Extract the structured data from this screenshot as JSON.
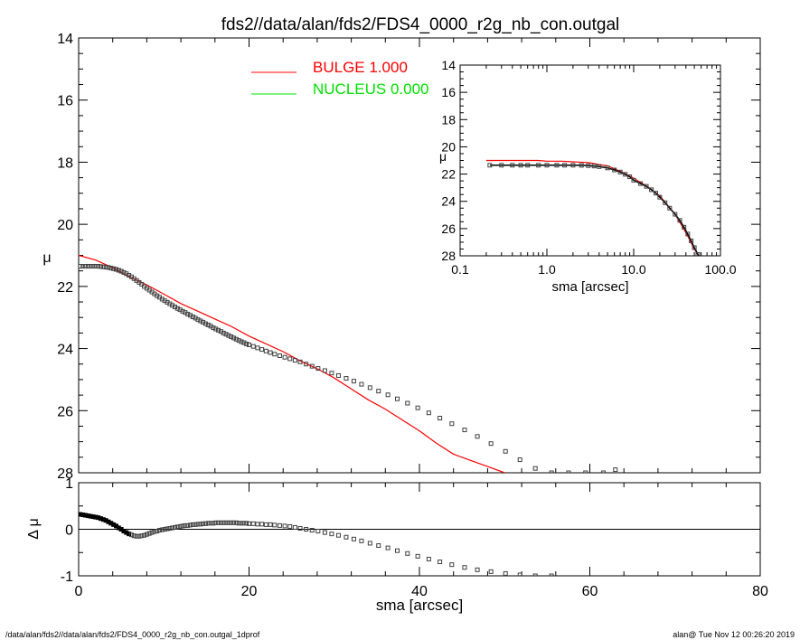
{
  "title": "fds2//data/alan/fds2/FDS4_0000_r2g_nb_con.outgal",
  "footer_left": "/data/alan/fds2//data/alan/fds2/FDS4_0000_r2g_nb_con.outgal_1dprof",
  "footer_right": "alan@  Tue Nov 12 00:26:20 2019",
  "colors": {
    "bulge": "#ff0000",
    "nucleus": "#00e000",
    "data": "#404040",
    "axes": "#000000"
  },
  "chart_data": [
    {
      "type": "scatter",
      "panel": "main",
      "xlabel": "",
      "ylabel": "μ",
      "xlim": [
        0,
        80
      ],
      "ylim": [
        28,
        14
      ],
      "y_ticks": [
        "14",
        "16",
        "18",
        "20",
        "22",
        "24",
        "26",
        "28"
      ],
      "legend": [
        {
          "label": "BULGE  1.000",
          "color": "#ff0000"
        },
        {
          "label": "NUCLEUS  0.000",
          "color": "#00e000"
        }
      ],
      "legend_position": "top-center",
      "series": [
        {
          "name": "BULGE  1.000",
          "kind": "line",
          "x": [
            0,
            2,
            4,
            6,
            8,
            10,
            12,
            14,
            16,
            18,
            20,
            22,
            24,
            26,
            28,
            30,
            32,
            34,
            36,
            38,
            40,
            42,
            44,
            46,
            48,
            50
          ],
          "y": [
            21.0,
            21.15,
            21.4,
            21.7,
            21.95,
            22.25,
            22.55,
            22.8,
            23.05,
            23.3,
            23.6,
            23.85,
            24.1,
            24.4,
            24.65,
            24.95,
            25.3,
            25.65,
            25.95,
            26.3,
            26.65,
            27.05,
            27.4,
            27.6,
            27.8,
            28.0
          ]
        },
        {
          "name": "",
          "kind": "markers",
          "x": [
            0.2,
            0.5,
            0.8,
            1.1,
            1.4,
            1.7,
            2.0,
            2.3,
            2.6,
            2.9,
            3.2,
            3.5,
            3.8,
            4.1,
            4.4,
            4.7,
            5.0,
            5.3,
            5.6,
            5.9,
            6.2,
            6.5,
            6.8,
            7.1,
            7.4,
            7.7,
            8.0,
            8.3,
            8.6,
            8.9,
            9.2,
            9.5,
            9.8,
            10.1,
            10.4,
            10.7,
            11.0,
            11.3,
            11.6,
            11.9,
            12.2,
            12.5,
            12.8,
            13.1,
            13.4,
            13.7,
            14.0,
            14.3,
            14.6,
            14.9,
            15.2,
            15.5,
            15.8,
            16.1,
            16.4,
            16.7,
            17.0,
            17.3,
            17.6,
            17.9,
            18.2,
            18.5,
            18.8,
            19.1,
            19.4,
            19.7,
            20.0,
            20.5,
            21.0,
            21.5,
            22.0,
            22.5,
            23.0,
            23.6,
            24.2,
            24.8,
            25.4,
            26.0,
            26.7,
            27.4,
            28.1,
            28.9,
            29.7,
            30.5,
            31.4,
            32.3,
            33.2,
            34.2,
            35.2,
            36.3,
            37.4,
            38.6,
            39.8,
            41.1,
            42.4,
            43.8,
            45.3,
            46.8,
            48.4,
            50.1,
            51.8,
            53.6,
            55.5,
            57.5,
            59.5,
            61.6,
            63.0
          ],
          "y": [
            21.35,
            21.35,
            21.35,
            21.35,
            21.35,
            21.35,
            21.35,
            21.35,
            21.36,
            21.37,
            21.38,
            21.39,
            21.41,
            21.43,
            21.45,
            21.48,
            21.51,
            21.55,
            21.59,
            21.64,
            21.69,
            21.75,
            21.81,
            21.87,
            21.93,
            22.0,
            22.06,
            22.12,
            22.18,
            22.24,
            22.3,
            22.35,
            22.41,
            22.46,
            22.51,
            22.56,
            22.61,
            22.66,
            22.71,
            22.75,
            22.8,
            22.84,
            22.89,
            22.93,
            22.98,
            23.02,
            23.07,
            23.11,
            23.15,
            23.2,
            23.24,
            23.28,
            23.33,
            23.37,
            23.41,
            23.45,
            23.5,
            23.54,
            23.58,
            23.62,
            23.66,
            23.7,
            23.74,
            23.78,
            23.81,
            23.85,
            23.88,
            23.93,
            23.98,
            24.03,
            24.08,
            24.13,
            24.18,
            24.23,
            24.28,
            24.33,
            24.38,
            24.43,
            24.5,
            24.57,
            24.64,
            24.71,
            24.79,
            24.87,
            24.96,
            25.05,
            25.15,
            25.26,
            25.37,
            25.49,
            25.62,
            25.76,
            25.91,
            26.07,
            26.24,
            26.42,
            26.62,
            26.83,
            27.06,
            27.31,
            27.58,
            27.86,
            28.0,
            28.0,
            28.0,
            28.0,
            27.9
          ]
        }
      ]
    },
    {
      "type": "scatter",
      "panel": "residual",
      "xlabel": "sma [arcsec]",
      "ylabel": "Δ μ",
      "xlim": [
        0,
        80
      ],
      "ylim": [
        -1,
        1
      ],
      "x_ticks": [
        "0",
        "20",
        "40",
        "60",
        "80"
      ],
      "y_ticks": [
        "1",
        "0",
        "-1"
      ],
      "series": [
        {
          "name": "",
          "kind": "markers",
          "x": [
            0.2,
            0.5,
            0.8,
            1.1,
            1.4,
            1.7,
            2.0,
            2.3,
            2.6,
            2.9,
            3.2,
            3.5,
            3.8,
            4.1,
            4.4,
            4.7,
            5.0,
            5.3,
            5.6,
            5.9,
            6.2,
            6.5,
            6.8,
            7.1,
            7.4,
            7.7,
            8.0,
            8.3,
            8.6,
            8.9,
            9.2,
            9.5,
            9.8,
            10.1,
            10.4,
            10.7,
            11.0,
            11.3,
            11.6,
            11.9,
            12.2,
            12.5,
            12.8,
            13.1,
            13.4,
            13.7,
            14.0,
            14.3,
            14.6,
            14.9,
            15.2,
            15.5,
            15.8,
            16.1,
            16.4,
            16.7,
            17.0,
            17.3,
            17.6,
            17.9,
            18.2,
            18.5,
            18.8,
            19.1,
            19.4,
            19.7,
            20.0,
            20.5,
            21.0,
            21.5,
            22.0,
            22.5,
            23.0,
            23.6,
            24.2,
            24.8,
            25.4,
            26.0,
            26.7,
            27.4,
            28.1,
            28.9,
            29.7,
            30.5,
            31.4,
            32.3,
            33.2,
            34.2,
            35.2,
            36.3,
            37.4,
            38.6,
            39.8,
            41.1,
            42.4,
            43.8,
            45.3,
            46.8,
            48.4,
            50.1,
            51.8,
            53.6,
            55.5
          ],
          "y": [
            0.32,
            0.31,
            0.3,
            0.29,
            0.28,
            0.27,
            0.26,
            0.25,
            0.23,
            0.21,
            0.19,
            0.16,
            0.13,
            0.1,
            0.07,
            0.03,
            0.0,
            -0.04,
            -0.07,
            -0.1,
            -0.12,
            -0.14,
            -0.15,
            -0.15,
            -0.14,
            -0.13,
            -0.11,
            -0.09,
            -0.07,
            -0.05,
            -0.04,
            -0.02,
            -0.01,
            0.0,
            0.01,
            0.02,
            0.03,
            0.04,
            0.05,
            0.06,
            0.07,
            0.08,
            0.08,
            0.09,
            0.1,
            0.1,
            0.11,
            0.11,
            0.12,
            0.12,
            0.13,
            0.13,
            0.13,
            0.14,
            0.14,
            0.14,
            0.14,
            0.14,
            0.14,
            0.14,
            0.14,
            0.14,
            0.13,
            0.13,
            0.13,
            0.13,
            0.12,
            0.12,
            0.11,
            0.11,
            0.1,
            0.1,
            0.09,
            0.08,
            0.07,
            0.06,
            0.04,
            0.02,
            0.0,
            -0.02,
            -0.04,
            -0.07,
            -0.1,
            -0.13,
            -0.17,
            -0.21,
            -0.25,
            -0.3,
            -0.35,
            -0.4,
            -0.46,
            -0.52,
            -0.58,
            -0.64,
            -0.7,
            -0.76,
            -0.82,
            -0.87,
            -0.91,
            -0.95,
            -0.98,
            -1.0,
            -1.0
          ]
        }
      ]
    },
    {
      "type": "scatter",
      "panel": "inset",
      "xlabel": "sma [arcsec]",
      "ylabel": "μ",
      "xscale": "log",
      "xlim": [
        0.1,
        100
      ],
      "ylim": [
        28,
        14
      ],
      "x_ticks": [
        "0.1",
        "1.0",
        "10.0",
        "100.0"
      ],
      "y_ticks": [
        "14",
        "16",
        "18",
        "20",
        "22",
        "24",
        "26",
        "28"
      ],
      "series": [
        {
          "name": "BULGE  1.000",
          "kind": "line",
          "x": [
            0.2,
            0.3,
            0.5,
            0.8,
            1.0,
            1.5,
            2.0,
            3.0,
            4.0,
            5.0,
            7.0,
            10.0,
            15.0,
            20.0,
            30.0,
            40.0,
            50.0,
            60.0
          ],
          "y": [
            21.0,
            21.0,
            21.0,
            21.0,
            21.05,
            21.05,
            21.1,
            21.15,
            21.3,
            21.4,
            21.8,
            22.3,
            23.0,
            23.6,
            24.95,
            26.3,
            27.5,
            28.3
          ]
        },
        {
          "name": "",
          "kind": "markers",
          "x": [
            0.22,
            0.3,
            0.4,
            0.5,
            0.6,
            0.8,
            1.0,
            1.3,
            1.6,
            2.0,
            2.5,
            3.0,
            3.5,
            4.0,
            5.0,
            6.0,
            7.0,
            8.0,
            9.0,
            10.0,
            12.0,
            14.0,
            16.0,
            18.0,
            20.0,
            23.0,
            26.0,
            30.0,
            34.0,
            38.0,
            42.0,
            46.0,
            50.0,
            55.0,
            60.0
          ],
          "y": [
            21.35,
            21.35,
            21.35,
            21.35,
            21.35,
            21.35,
            21.35,
            21.35,
            21.35,
            21.35,
            21.36,
            21.38,
            21.41,
            21.45,
            21.55,
            21.7,
            21.85,
            22.02,
            22.2,
            22.45,
            22.7,
            22.9,
            23.15,
            23.4,
            23.7,
            24.1,
            24.5,
            24.95,
            25.4,
            25.9,
            26.4,
            26.9,
            27.4,
            27.9,
            28.3
          ]
        }
      ]
    }
  ]
}
